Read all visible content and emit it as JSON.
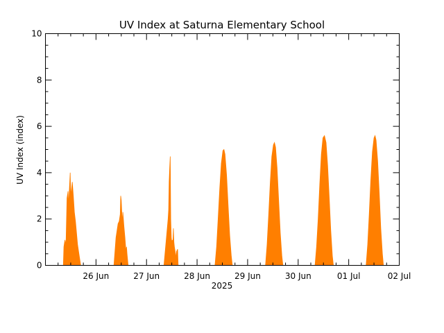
{
  "chart_data": {
    "type": "area",
    "title": "UV Index at Saturna Elementary School",
    "xlabel": "2025",
    "ylabel": "UV Index (index)",
    "year": "2025",
    "x_range": [
      "2025-06-25T00:00",
      "2025-07-02T00:00"
    ],
    "ylim": [
      0,
      10
    ],
    "y_ticks": [
      0,
      2,
      4,
      6,
      8,
      10
    ],
    "x_ticks": [
      {
        "date": "2025-06-26",
        "label": "26 Jun"
      },
      {
        "date": "2025-06-27",
        "label": "27 Jun"
      },
      {
        "date": "2025-06-28",
        "label": "28 Jun"
      },
      {
        "date": "2025-06-29",
        "label": "29 Jun"
      },
      {
        "date": "2025-06-30",
        "label": "30 Jun"
      },
      {
        "date": "2025-07-01",
        "label": "01 Jul"
      },
      {
        "date": "2025-07-02",
        "label": "02 Jul"
      }
    ],
    "grid": false,
    "legend": "none",
    "fill_color": "#ff7f00",
    "series": [
      {
        "values": [
          [
            "2025-06-25T08:30",
            0
          ],
          [
            "2025-06-25T08:45",
            0.8
          ],
          [
            "2025-06-25T09:15",
            1.1
          ],
          [
            "2025-06-25T09:45",
            0.9
          ],
          [
            "2025-06-25T10:15",
            2.9
          ],
          [
            "2025-06-25T10:45",
            3.2
          ],
          [
            "2025-06-25T11:00",
            2.6
          ],
          [
            "2025-06-25T11:15",
            3.1
          ],
          [
            "2025-06-25T11:45",
            4.0
          ],
          [
            "2025-06-25T12:00",
            3.0
          ],
          [
            "2025-06-25T12:15",
            3.2
          ],
          [
            "2025-06-25T12:45",
            3.6
          ],
          [
            "2025-06-25T13:15",
            3.0
          ],
          [
            "2025-06-25T13:45",
            2.3
          ],
          [
            "2025-06-25T14:15",
            1.9
          ],
          [
            "2025-06-25T14:45",
            1.4
          ],
          [
            "2025-06-25T15:15",
            0.9
          ],
          [
            "2025-06-25T15:45",
            0.6
          ],
          [
            "2025-06-25T16:15",
            0.3
          ],
          [
            "2025-06-25T16:45",
            0
          ],
          [
            "2025-06-26T08:30",
            0
          ],
          [
            "2025-06-26T09:00",
            0.6
          ],
          [
            "2025-06-26T09:30",
            1.2
          ],
          [
            "2025-06-26T10:00",
            1.5
          ],
          [
            "2025-06-26T10:30",
            1.8
          ],
          [
            "2025-06-26T11:00",
            1.9
          ],
          [
            "2025-06-26T11:30",
            2.2
          ],
          [
            "2025-06-26T11:45",
            3.0
          ],
          [
            "2025-06-26T12:00",
            2.8
          ],
          [
            "2025-06-26T12:30",
            1.8
          ],
          [
            "2025-06-26T12:45",
            2.3
          ],
          [
            "2025-06-26T13:15",
            1.7
          ],
          [
            "2025-06-26T13:45",
            1.2
          ],
          [
            "2025-06-26T14:15",
            0.6
          ],
          [
            "2025-06-26T14:30",
            0.8
          ],
          [
            "2025-06-26T14:45",
            0.5
          ],
          [
            "2025-06-26T15:15",
            0
          ],
          [
            "2025-06-27T08:15",
            0
          ],
          [
            "2025-06-27T08:45",
            0.5
          ],
          [
            "2025-06-27T09:15",
            1.0
          ],
          [
            "2025-06-27T09:45",
            1.5
          ],
          [
            "2025-06-27T10:15",
            2.0
          ],
          [
            "2025-06-27T10:30",
            2.4
          ],
          [
            "2025-06-27T10:45",
            3.6
          ],
          [
            "2025-06-27T11:00",
            4.2
          ],
          [
            "2025-06-27T11:15",
            4.7
          ],
          [
            "2025-06-27T11:30",
            2.0
          ],
          [
            "2025-06-27T11:45",
            1.2
          ],
          [
            "2025-06-27T12:00",
            1.0
          ],
          [
            "2025-06-27T12:15",
            1.1
          ],
          [
            "2025-06-27T12:30",
            0.9
          ],
          [
            "2025-06-27T12:45",
            1.6
          ],
          [
            "2025-06-27T13:00",
            1.0
          ],
          [
            "2025-06-27T13:15",
            0.8
          ],
          [
            "2025-06-27T13:45",
            0.5
          ],
          [
            "2025-06-27T14:00",
            0.3
          ],
          [
            "2025-06-27T14:15",
            0.6
          ],
          [
            "2025-06-27T14:45",
            0.7
          ],
          [
            "2025-06-27T15:00",
            0
          ],
          [
            "2025-06-28T08:30",
            0
          ],
          [
            "2025-06-28T09:15",
            0.8
          ],
          [
            "2025-06-28T10:00",
            2.0
          ],
          [
            "2025-06-28T10:45",
            3.3
          ],
          [
            "2025-06-28T11:30",
            4.4
          ],
          [
            "2025-06-28T12:15",
            4.95
          ],
          [
            "2025-06-28T12:45",
            5.0
          ],
          [
            "2025-06-28T13:15",
            4.8
          ],
          [
            "2025-06-28T14:00",
            3.9
          ],
          [
            "2025-06-28T14:45",
            2.6
          ],
          [
            "2025-06-28T15:30",
            1.3
          ],
          [
            "2025-06-28T16:15",
            0.4
          ],
          [
            "2025-06-28T16:45",
            0
          ],
          [
            "2025-06-29T08:30",
            0
          ],
          [
            "2025-06-29T09:15",
            0.9
          ],
          [
            "2025-06-29T10:00",
            2.2
          ],
          [
            "2025-06-29T10:45",
            3.6
          ],
          [
            "2025-06-29T11:30",
            4.7
          ],
          [
            "2025-06-29T12:15",
            5.2
          ],
          [
            "2025-06-29T12:45",
            5.3
          ],
          [
            "2025-06-29T13:15",
            5.1
          ],
          [
            "2025-06-29T14:00",
            4.2
          ],
          [
            "2025-06-29T14:45",
            2.8
          ],
          [
            "2025-06-29T15:30",
            1.4
          ],
          [
            "2025-06-29T16:15",
            0.4
          ],
          [
            "2025-06-29T16:45",
            0
          ],
          [
            "2025-06-30T08:00",
            0
          ],
          [
            "2025-06-30T08:45",
            0.8
          ],
          [
            "2025-06-30T09:30",
            2.0
          ],
          [
            "2025-06-30T10:15",
            3.5
          ],
          [
            "2025-06-30T11:00",
            4.8
          ],
          [
            "2025-06-30T11:45",
            5.5
          ],
          [
            "2025-06-30T12:30",
            5.6
          ],
          [
            "2025-06-30T13:15",
            5.3
          ],
          [
            "2025-06-30T14:00",
            4.3
          ],
          [
            "2025-06-30T14:45",
            2.9
          ],
          [
            "2025-06-30T15:30",
            1.5
          ],
          [
            "2025-06-30T16:15",
            0.4
          ],
          [
            "2025-06-30T16:45",
            0
          ],
          [
            "2025-07-01T08:15",
            0
          ],
          [
            "2025-07-01T09:00",
            0.9
          ],
          [
            "2025-07-01T09:45",
            2.2
          ],
          [
            "2025-07-01T10:30",
            3.7
          ],
          [
            "2025-07-01T11:15",
            4.9
          ],
          [
            "2025-07-01T12:00",
            5.5
          ],
          [
            "2025-07-01T12:30",
            5.6
          ],
          [
            "2025-07-01T13:00",
            5.4
          ],
          [
            "2025-07-01T13:45",
            4.5
          ],
          [
            "2025-07-01T14:30",
            3.1
          ],
          [
            "2025-07-01T15:15",
            1.6
          ],
          [
            "2025-07-01T16:00",
            0.5
          ],
          [
            "2025-07-01T16:30",
            0
          ]
        ]
      }
    ]
  }
}
